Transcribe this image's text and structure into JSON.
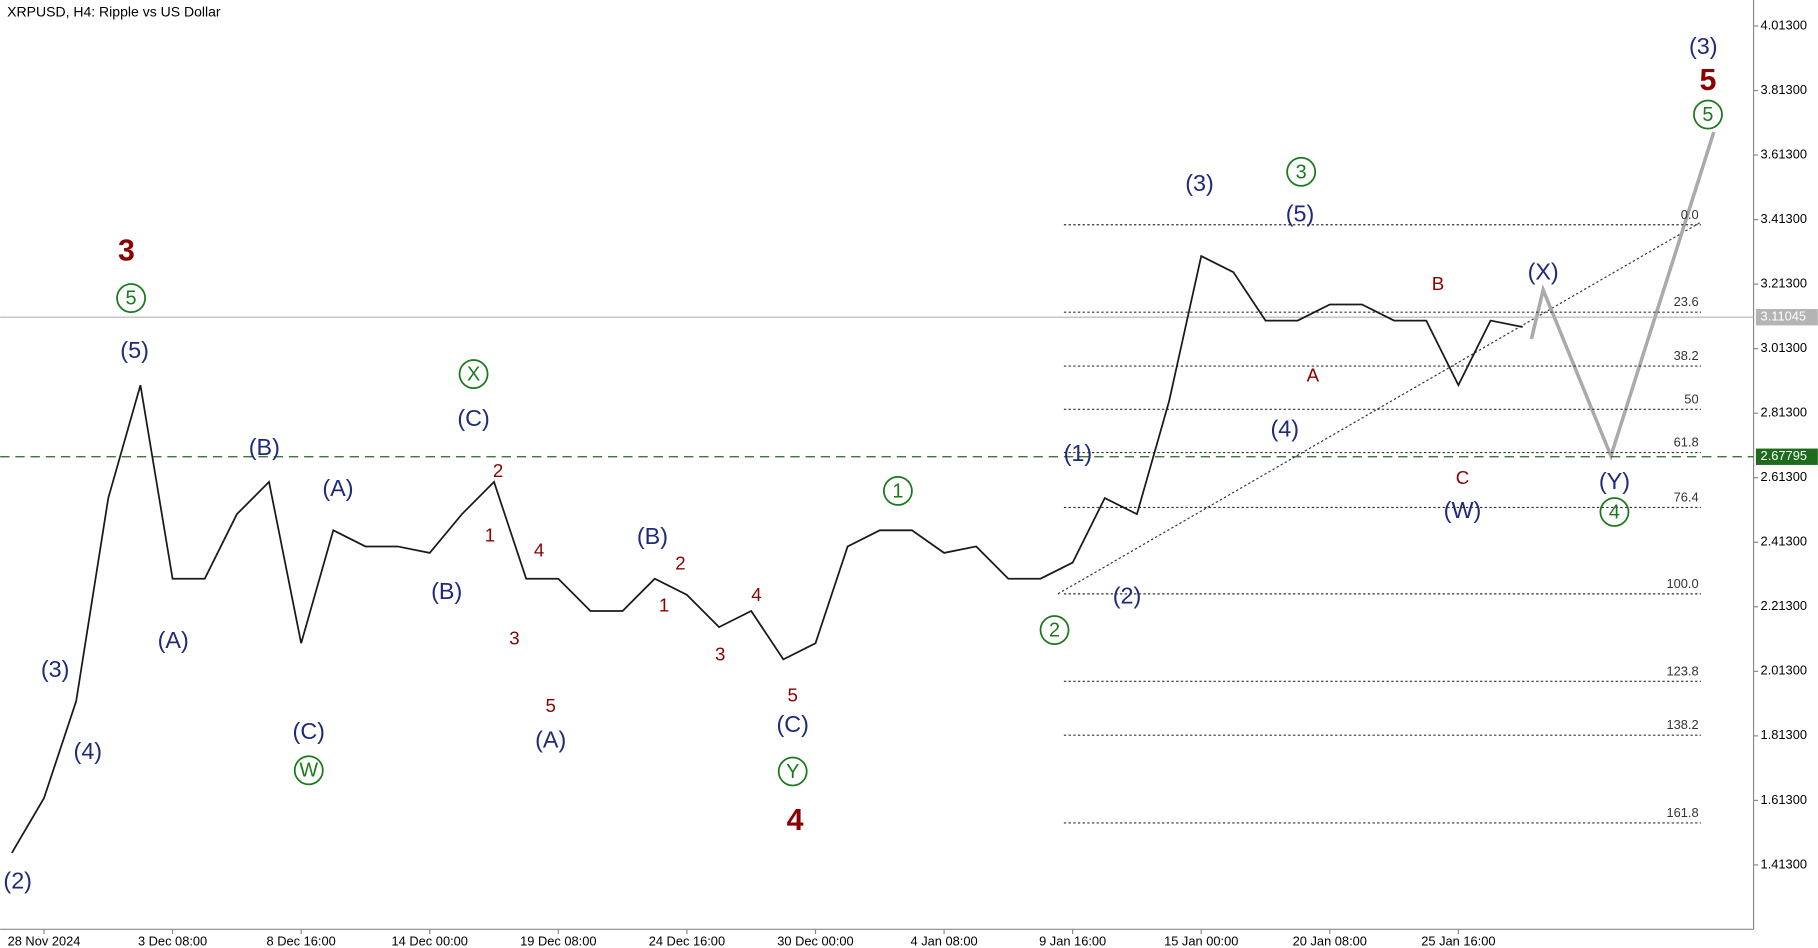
{
  "chart_data": {
    "type": "line",
    "title": "XRPUSD, H4:  Ripple vs US Dollar",
    "color": "#1a1a1a",
    "categories": [
      null,
      "28 Nov 2024",
      null,
      null,
      null,
      "3 Dec 08:00",
      null,
      null,
      null,
      "8 Dec 16:00",
      null,
      null,
      null,
      "14 Dec 00:00",
      null,
      null,
      null,
      "19 Dec 08:00",
      null,
      null,
      null,
      "24 Dec 16:00",
      null,
      null,
      null,
      "30 Dec 00:00",
      null,
      null,
      null,
      "4 Jan 08:00",
      null,
      null,
      null,
      "9 Jan 16:00",
      null,
      null,
      null,
      "15 Jan 00:00",
      null,
      null,
      null,
      "20 Jan 08:00",
      null,
      null,
      null,
      "25 Jan 16:00",
      null,
      null
    ],
    "values": [
      1.45,
      1.62,
      1.92,
      2.55,
      2.9,
      2.3,
      2.3,
      2.5,
      2.6,
      2.1,
      2.45,
      2.4,
      2.4,
      2.38,
      2.5,
      2.6,
      2.3,
      2.3,
      2.2,
      2.2,
      2.3,
      2.25,
      2.15,
      2.2,
      2.05,
      2.1,
      2.4,
      2.45,
      2.45,
      2.38,
      2.4,
      2.3,
      2.3,
      2.35,
      2.55,
      2.5,
      2.85,
      3.3,
      3.25,
      3.1,
      3.1,
      3.15,
      3.15,
      3.1,
      3.1,
      2.9,
      3.1,
      3.08
    ],
    "ylim": [
      1.2135,
      4.0935
    ],
    "yticks": [
      {
        "value": 1.413,
        "label": "1.41300"
      },
      {
        "value": 1.613,
        "label": "1.61300"
      },
      {
        "value": 1.813,
        "label": "1.81300"
      },
      {
        "value": 2.013,
        "label": "2.01300"
      },
      {
        "value": 2.213,
        "label": "2.21300"
      },
      {
        "value": 2.413,
        "label": "2.41300"
      },
      {
        "value": 2.613,
        "label": "2.61300"
      },
      {
        "value": 2.813,
        "label": "2.81300"
      },
      {
        "value": 3.013,
        "label": "3.01300"
      },
      {
        "value": 3.213,
        "label": "3.21300"
      },
      {
        "value": 3.413,
        "label": "3.41300"
      },
      {
        "value": 3.613,
        "label": "3.61300"
      },
      {
        "value": 3.813,
        "label": "3.81300"
      },
      {
        "value": 4.013,
        "label": "4.01300"
      }
    ],
    "grid": false,
    "price_lines": [
      {
        "value": 3.11045,
        "color": "#b4b4b4"
      },
      {
        "value": 2.67795,
        "color": "#1e6b1e"
      }
    ],
    "fib_levels": [
      {
        "label": "0.0",
        "value": 3.397
      },
      {
        "label": "23.6",
        "value": 3.126
      },
      {
        "label": "38.2",
        "value": 2.959
      },
      {
        "label": "50",
        "value": 2.825
      },
      {
        "label": "61.8",
        "value": 2.691
      },
      {
        "label": "76.4",
        "value": 2.521
      },
      {
        "label": "100.0",
        "value": 2.253
      },
      {
        "label": "123.8",
        "value": 1.982
      },
      {
        "label": "138.2",
        "value": 1.815
      },
      {
        "label": "161.8",
        "value": 1.543
      }
    ],
    "wave_labels": [
      {
        "color": "#1f2a7a",
        "texts": [
          "(2)",
          "(3)",
          "(4)",
          "(5)",
          "(A)",
          "(B)",
          "(C)",
          "(A)",
          "(B)",
          "(C)",
          "(A)",
          "(B)",
          "(C)",
          "(1)",
          "(2)",
          "(3)",
          "(5)",
          "(4)",
          "(X)",
          "(W)",
          "(Y)",
          "(3)"
        ]
      },
      {
        "color": "#8b0000",
        "texts": [
          "3",
          "4",
          "5"
        ]
      },
      {
        "color": "#8b0000",
        "texts": [
          "2",
          "1",
          "4",
          "3",
          "5",
          "2",
          "1",
          "4",
          "3",
          "5",
          "A",
          "B",
          "C"
        ]
      },
      {
        "color": "#1b7a1b",
        "texts": [
          "5",
          "X",
          "W",
          "Y",
          "1",
          "2",
          "3",
          "4",
          "5"
        ]
      }
    ]
  }
}
